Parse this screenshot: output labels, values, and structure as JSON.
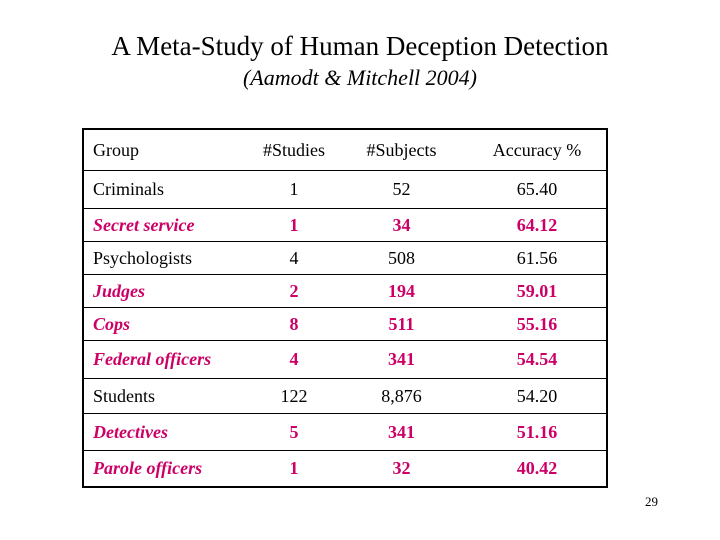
{
  "slide": {
    "title": "A Meta-Study of Human Deception Detection",
    "subtitle": "(Aamodt & Mitchell 2004)",
    "page_number": "29",
    "highlight_color": "#cc0066"
  },
  "table": {
    "headers": [
      "Group",
      "#Studies",
      "#Subjects",
      "Accuracy %"
    ],
    "rows": [
      {
        "group": "Criminals",
        "studies": "1",
        "subjects": "52",
        "accuracy": "65.40",
        "highlight": false
      },
      {
        "group": "Secret service",
        "studies": "1",
        "subjects": "34",
        "accuracy": "64.12",
        "highlight": true
      },
      {
        "group": "Psychologists",
        "studies": "4",
        "subjects": "508",
        "accuracy": "61.56",
        "highlight": false
      },
      {
        "group": "Judges",
        "studies": "2",
        "subjects": "194",
        "accuracy": "59.01",
        "highlight": true
      },
      {
        "group": "Cops",
        "studies": "8",
        "subjects": "511",
        "accuracy": "55.16",
        "highlight": true
      },
      {
        "group": "Federal officers",
        "studies": "4",
        "subjects": "341",
        "accuracy": "54.54",
        "highlight": true
      },
      {
        "group": "Students",
        "studies": "122",
        "subjects": "8,876",
        "accuracy": "54.20",
        "highlight": false
      },
      {
        "group": "Detectives",
        "studies": "5",
        "subjects": "341",
        "accuracy": "51.16",
        "highlight": true
      },
      {
        "group": "Parole officers",
        "studies": "1",
        "subjects": "32",
        "accuracy": "40.42",
        "highlight": true
      }
    ]
  }
}
